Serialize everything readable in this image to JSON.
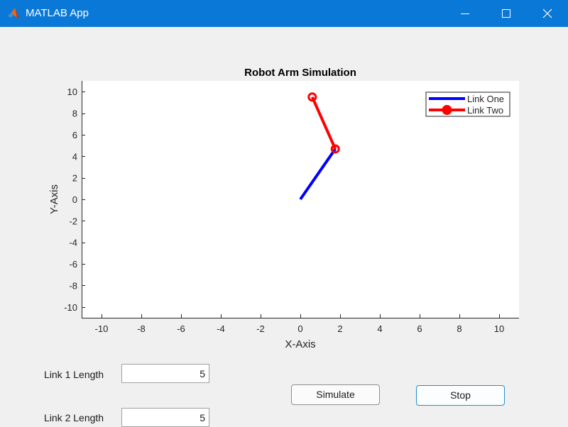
{
  "window": {
    "title": "MATLAB App",
    "icon": "matlab-logo-icon",
    "controls": [
      "minimize-icon",
      "maximize-icon",
      "close-icon"
    ]
  },
  "controls": {
    "link1_label": "Link 1 Length",
    "link1_value": "5",
    "link2_label": "Link 2 Length",
    "link2_value": "5",
    "simulate_label": "Simulate",
    "stop_label": "Stop"
  },
  "chart_data": {
    "type": "line",
    "title": "Robot Arm Simulation",
    "xlabel": "X-Axis",
    "ylabel": "Y-Axis",
    "xlim": [
      -11,
      11
    ],
    "ylim": [
      -11,
      11
    ],
    "xticks": [
      -10,
      -8,
      -6,
      -4,
      -2,
      0,
      2,
      4,
      6,
      8,
      10
    ],
    "yticks": [
      -10,
      -8,
      -6,
      -4,
      -2,
      0,
      2,
      4,
      6,
      8,
      10
    ],
    "grid": false,
    "legend_position": "top-right",
    "series": [
      {
        "name": "Link One",
        "color": "#0000ff",
        "marker": "none",
        "x": [
          0,
          1.76
        ],
        "y": [
          0,
          4.68
        ]
      },
      {
        "name": "Link Two",
        "color": "#ff0000",
        "marker": "circle",
        "x": [
          1.76,
          0.6
        ],
        "y": [
          4.68,
          9.5
        ]
      }
    ]
  }
}
